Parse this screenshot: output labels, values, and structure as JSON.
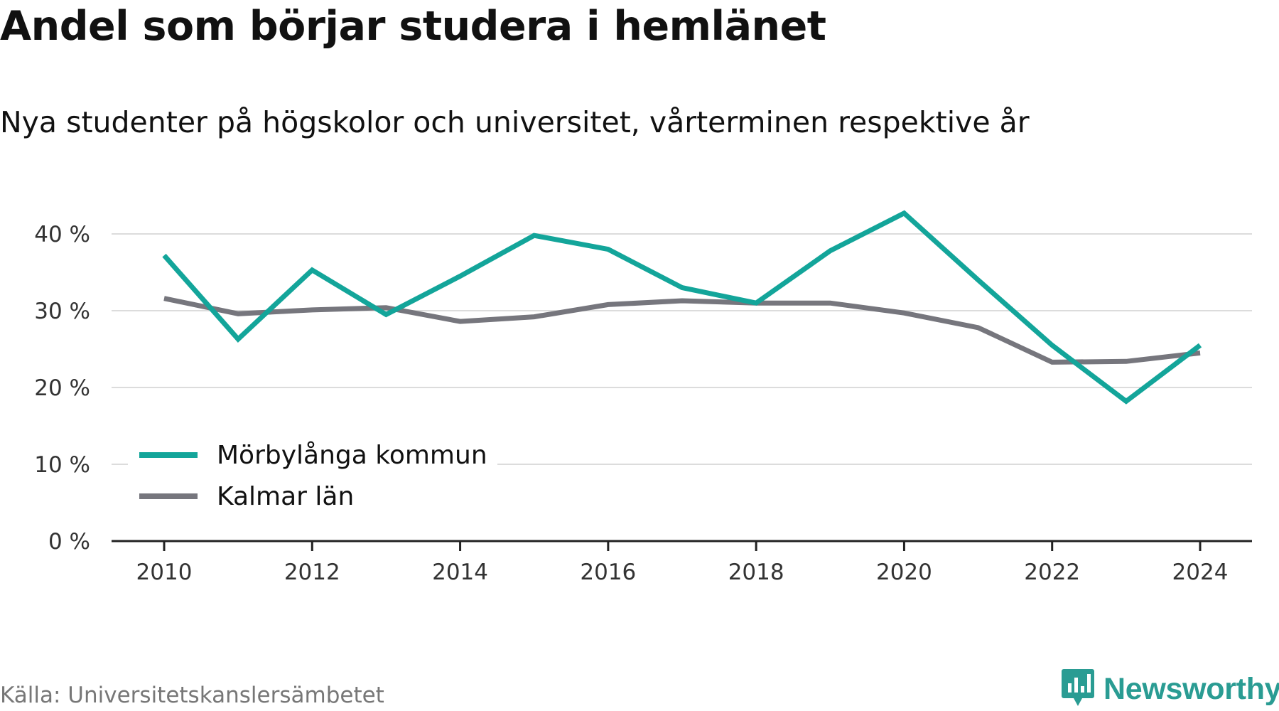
{
  "title": "Andel som börjar studera i hemlänet",
  "subtitle": "Nya studenter på högskolor och universitet, vårterminen respektive år",
  "source": "Källa: Universitetskanslersämbetet",
  "brand": {
    "name": "Newsworthy",
    "icon": "newsworthy-logo-icon",
    "color": "#2a9c93"
  },
  "chart_data": {
    "type": "line",
    "title": "Andel som börjar studera i hemlänet",
    "subtitle": "Nya studenter på högskolor och universitet, vårterminen respektive år",
    "x": [
      2010,
      2011,
      2012,
      2013,
      2014,
      2015,
      2016,
      2017,
      2018,
      2019,
      2020,
      2021,
      2022,
      2023,
      2024
    ],
    "series": [
      {
        "name": "Mörbylånga kommun",
        "color": "#13a59a",
        "values": [
          37.2,
          26.3,
          35.3,
          29.5,
          34.5,
          39.8,
          38.0,
          33.0,
          31.0,
          37.8,
          42.7,
          34.0,
          25.5,
          18.2,
          25.5
        ]
      },
      {
        "name": "Kalmar län",
        "color": "#76767d",
        "values": [
          31.6,
          29.6,
          30.1,
          30.4,
          28.6,
          29.2,
          30.8,
          31.3,
          31.0,
          31.0,
          29.7,
          27.8,
          23.3,
          23.4,
          24.5
        ]
      }
    ],
    "ylim": [
      0,
      45
    ],
    "yticks": [
      0,
      10,
      20,
      30,
      40
    ],
    "ytick_labels": [
      "0 %",
      "10 %",
      "20 %",
      "30 %",
      "40 %"
    ],
    "xticks": [
      2010,
      2012,
      2014,
      2016,
      2018,
      2020,
      2022,
      2024
    ],
    "xtick_labels": [
      "2010",
      "2012",
      "2014",
      "2016",
      "2018",
      "2020",
      "2022",
      "2024"
    ],
    "xlabel": "",
    "ylabel": "",
    "grid": true,
    "legend": "bottom-left"
  }
}
